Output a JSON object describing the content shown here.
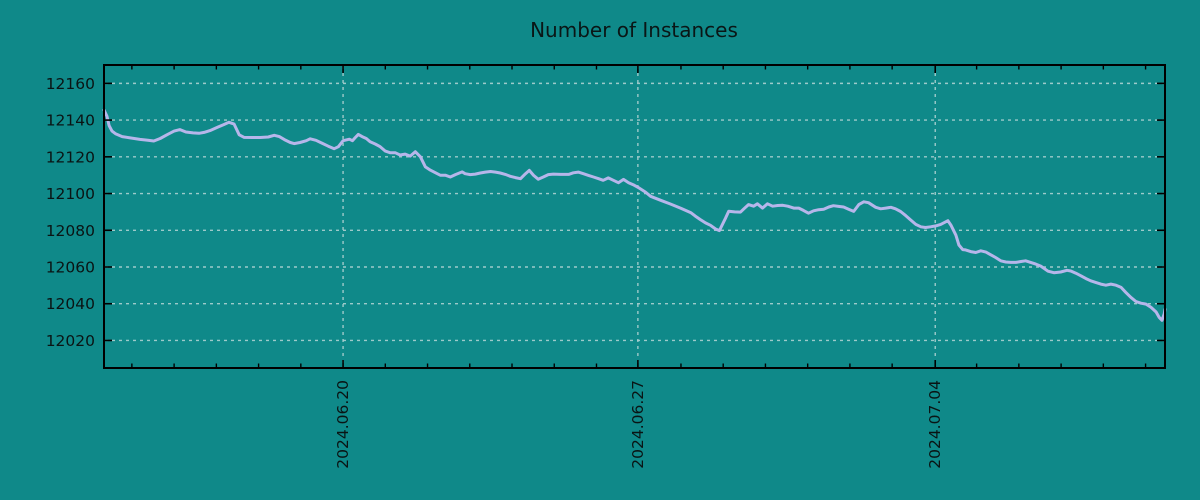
{
  "figure": {
    "title": "Number of Instances",
    "background_color": "#0f8989",
    "line_color": "#b6b6ea",
    "grid_color": "#aed2d2",
    "axis_color": "#000000",
    "text_color": "#0a1414"
  },
  "chart_data": {
    "type": "line",
    "title": "Number of Instances",
    "xlabel": "",
    "ylabel": "",
    "legend": "none",
    "grid": "dashed major gridlines, both axes",
    "background": "#0f8989",
    "x_axis": {
      "kind": "date",
      "tick_labels": [
        "2024.06.20",
        "2024.06.27",
        "2024.07.04"
      ],
      "tick_days": [
        5.66,
        12.64,
        19.68
      ],
      "minor_tick_interval_days": 1,
      "minor_tick_phase_days": 0.66,
      "range_days": [
        0,
        25.12
      ],
      "label_rotation_deg": -90
    },
    "y_axis": {
      "ticks": [
        12020,
        12040,
        12060,
        12080,
        12100,
        12120,
        12140,
        12160
      ],
      "range": [
        12005,
        12170
      ]
    },
    "series": [
      {
        "name": "instances",
        "color": "#b6b6ea",
        "points": [
          [
            0.0,
            12145.5
          ],
          [
            0.07,
            12142.0
          ],
          [
            0.12,
            12137.0
          ],
          [
            0.19,
            12134.0
          ],
          [
            0.28,
            12132.5
          ],
          [
            0.43,
            12131.0
          ],
          [
            0.62,
            12130.3
          ],
          [
            0.85,
            12129.5
          ],
          [
            1.04,
            12129.0
          ],
          [
            1.18,
            12128.6
          ],
          [
            1.33,
            12130.0
          ],
          [
            1.49,
            12132.0
          ],
          [
            1.66,
            12134.0
          ],
          [
            1.8,
            12134.8
          ],
          [
            1.94,
            12133.5
          ],
          [
            2.11,
            12133.0
          ],
          [
            2.25,
            12132.8
          ],
          [
            2.37,
            12133.3
          ],
          [
            2.51,
            12134.3
          ],
          [
            2.68,
            12136.0
          ],
          [
            2.84,
            12137.6
          ],
          [
            2.96,
            12138.8
          ],
          [
            3.08,
            12137.8
          ],
          [
            3.2,
            12132.0
          ],
          [
            3.32,
            12130.6
          ],
          [
            3.51,
            12130.5
          ],
          [
            3.7,
            12130.5
          ],
          [
            3.89,
            12130.8
          ],
          [
            4.03,
            12131.7
          ],
          [
            4.15,
            12131.0
          ],
          [
            4.27,
            12129.4
          ],
          [
            4.41,
            12127.8
          ],
          [
            4.5,
            12127.2
          ],
          [
            4.64,
            12127.8
          ],
          [
            4.79,
            12128.8
          ],
          [
            4.88,
            12129.8
          ],
          [
            5.02,
            12129.0
          ],
          [
            5.17,
            12127.3
          ],
          [
            5.31,
            12125.8
          ],
          [
            5.45,
            12124.4
          ],
          [
            5.55,
            12125.5
          ],
          [
            5.66,
            12128.8
          ],
          [
            5.81,
            12129.6
          ],
          [
            5.88,
            12128.8
          ],
          [
            5.95,
            12130.5
          ],
          [
            6.02,
            12132.2
          ],
          [
            6.11,
            12131.0
          ],
          [
            6.21,
            12130.0
          ],
          [
            6.3,
            12128.2
          ],
          [
            6.42,
            12127.0
          ],
          [
            6.54,
            12125.5
          ],
          [
            6.66,
            12123.1
          ],
          [
            6.78,
            12122.2
          ],
          [
            6.9,
            12122.2
          ],
          [
            7.01,
            12121.0
          ],
          [
            7.13,
            12121.5
          ],
          [
            7.25,
            12120.4
          ],
          [
            7.37,
            12122.8
          ],
          [
            7.49,
            12120.0
          ],
          [
            7.61,
            12114.5
          ],
          [
            7.73,
            12112.7
          ],
          [
            7.84,
            12111.4
          ],
          [
            7.96,
            12110.0
          ],
          [
            8.08,
            12110.0
          ],
          [
            8.2,
            12109.0
          ],
          [
            8.32,
            12110.3
          ],
          [
            8.48,
            12111.8
          ],
          [
            8.55,
            12110.8
          ],
          [
            8.67,
            12110.3
          ],
          [
            8.79,
            12110.6
          ],
          [
            8.91,
            12111.2
          ],
          [
            9.03,
            12111.7
          ],
          [
            9.15,
            12112.0
          ],
          [
            9.27,
            12111.7
          ],
          [
            9.38,
            12111.2
          ],
          [
            9.5,
            12110.4
          ],
          [
            9.62,
            12109.4
          ],
          [
            9.74,
            12108.7
          ],
          [
            9.86,
            12108.1
          ],
          [
            9.98,
            12110.8
          ],
          [
            10.07,
            12112.6
          ],
          [
            10.17,
            12109.9
          ],
          [
            10.28,
            12107.8
          ],
          [
            10.4,
            12109.0
          ],
          [
            10.52,
            12110.3
          ],
          [
            10.64,
            12110.6
          ],
          [
            10.81,
            12110.4
          ],
          [
            11.0,
            12110.4
          ],
          [
            11.11,
            12111.3
          ],
          [
            11.23,
            12111.7
          ],
          [
            11.35,
            12110.8
          ],
          [
            11.47,
            12109.9
          ],
          [
            11.59,
            12109.0
          ],
          [
            11.71,
            12108.1
          ],
          [
            11.82,
            12107.2
          ],
          [
            11.94,
            12108.5
          ],
          [
            12.06,
            12107.2
          ],
          [
            12.18,
            12105.9
          ],
          [
            12.3,
            12107.7
          ],
          [
            12.42,
            12105.9
          ],
          [
            12.53,
            12104.8
          ],
          [
            12.65,
            12103.3
          ],
          [
            12.82,
            12100.8
          ],
          [
            12.94,
            12098.5
          ],
          [
            13.18,
            12096.3
          ],
          [
            13.41,
            12094.3
          ],
          [
            13.65,
            12092.1
          ],
          [
            13.89,
            12089.6
          ],
          [
            14.0,
            12087.7
          ],
          [
            14.12,
            12085.8
          ],
          [
            14.24,
            12084.0
          ],
          [
            14.36,
            12082.7
          ],
          [
            14.48,
            12080.7
          ],
          [
            14.57,
            12079.8
          ],
          [
            14.72,
            12086.8
          ],
          [
            14.79,
            12090.4
          ],
          [
            14.93,
            12090.0
          ],
          [
            15.07,
            12089.9
          ],
          [
            15.17,
            12092.1
          ],
          [
            15.26,
            12094.0
          ],
          [
            15.38,
            12093.1
          ],
          [
            15.47,
            12094.4
          ],
          [
            15.59,
            12092.1
          ],
          [
            15.71,
            12094.4
          ],
          [
            15.83,
            12093.1
          ],
          [
            15.95,
            12093.5
          ],
          [
            16.07,
            12093.6
          ],
          [
            16.19,
            12093.1
          ],
          [
            16.33,
            12092.1
          ],
          [
            16.45,
            12092.1
          ],
          [
            16.56,
            12090.8
          ],
          [
            16.68,
            12089.3
          ],
          [
            16.8,
            12090.6
          ],
          [
            16.92,
            12091.2
          ],
          [
            17.04,
            12091.5
          ],
          [
            17.16,
            12092.7
          ],
          [
            17.27,
            12093.4
          ],
          [
            17.39,
            12093.0
          ],
          [
            17.51,
            12092.7
          ],
          [
            17.63,
            12091.5
          ],
          [
            17.75,
            12090.3
          ],
          [
            17.87,
            12094.0
          ],
          [
            17.99,
            12095.5
          ],
          [
            18.1,
            12095.0
          ],
          [
            18.27,
            12092.5
          ],
          [
            18.39,
            12091.7
          ],
          [
            18.51,
            12092.1
          ],
          [
            18.63,
            12092.5
          ],
          [
            18.74,
            12091.7
          ],
          [
            18.86,
            12090.2
          ],
          [
            18.98,
            12088.0
          ],
          [
            19.1,
            12085.6
          ],
          [
            19.22,
            12083.2
          ],
          [
            19.34,
            12081.9
          ],
          [
            19.45,
            12081.5
          ],
          [
            19.57,
            12081.9
          ],
          [
            19.69,
            12082.4
          ],
          [
            19.81,
            12083.2
          ],
          [
            19.98,
            12085.2
          ],
          [
            20.05,
            12082.8
          ],
          [
            20.17,
            12077.3
          ],
          [
            20.24,
            12072.0
          ],
          [
            20.33,
            12069.5
          ],
          [
            20.4,
            12069.3
          ],
          [
            20.52,
            12068.4
          ],
          [
            20.64,
            12067.9
          ],
          [
            20.76,
            12068.8
          ],
          [
            20.88,
            12068.1
          ],
          [
            21.0,
            12066.6
          ],
          [
            21.11,
            12065.2
          ],
          [
            21.23,
            12063.4
          ],
          [
            21.35,
            12062.7
          ],
          [
            21.47,
            12062.5
          ],
          [
            21.59,
            12062.5
          ],
          [
            21.71,
            12063.0
          ],
          [
            21.82,
            12063.4
          ],
          [
            21.94,
            12062.5
          ],
          [
            22.06,
            12061.6
          ],
          [
            22.18,
            12060.5
          ],
          [
            22.35,
            12057.7
          ],
          [
            22.49,
            12056.9
          ],
          [
            22.65,
            12057.3
          ],
          [
            22.8,
            12058.2
          ],
          [
            22.89,
            12057.8
          ],
          [
            23.01,
            12056.6
          ],
          [
            23.13,
            12055.2
          ],
          [
            23.25,
            12053.7
          ],
          [
            23.36,
            12052.5
          ],
          [
            23.48,
            12051.6
          ],
          [
            23.6,
            12050.7
          ],
          [
            23.72,
            12050.1
          ],
          [
            23.84,
            12050.7
          ],
          [
            23.96,
            12050.1
          ],
          [
            24.08,
            12048.9
          ],
          [
            24.19,
            12046.2
          ],
          [
            24.31,
            12043.5
          ],
          [
            24.43,
            12041.2
          ],
          [
            24.55,
            12040.3
          ],
          [
            24.67,
            12039.8
          ],
          [
            24.79,
            12038.0
          ],
          [
            24.91,
            12035.5
          ],
          [
            24.98,
            12032.6
          ],
          [
            25.05,
            12031.0
          ],
          [
            25.1,
            12034.4
          ],
          [
            25.12,
            12037.0
          ]
        ]
      }
    ]
  }
}
